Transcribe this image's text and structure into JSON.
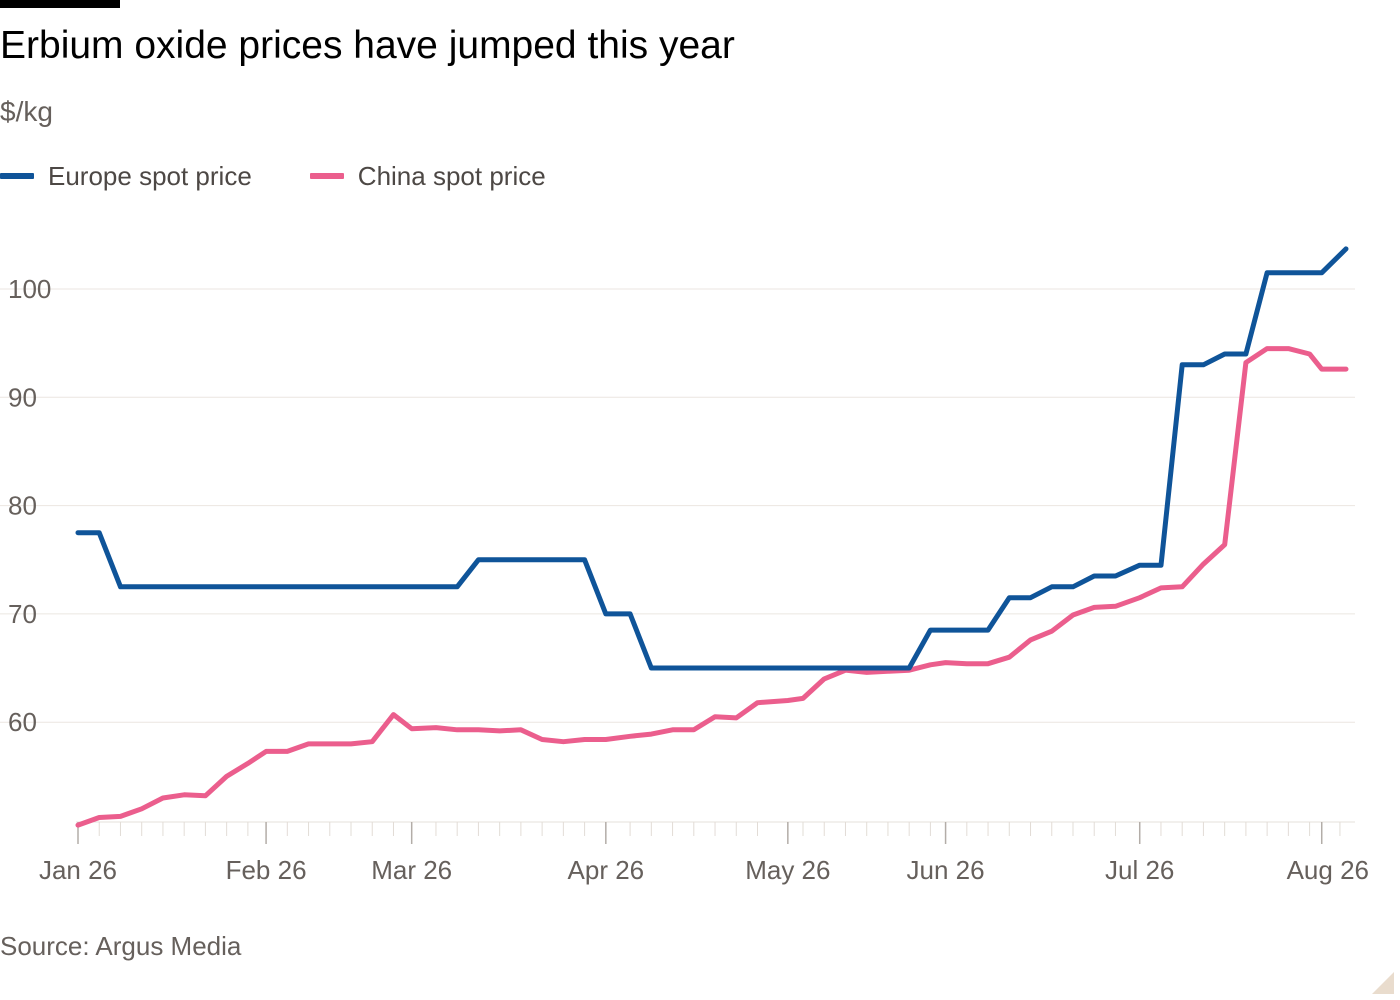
{
  "chart_data": {
    "type": "line",
    "title": "Erbium oxide prices have jumped this year",
    "subtitle": "$/kg",
    "source": "Source: Argus Media",
    "legend_position": "top-left",
    "grid": true,
    "ylim": [
      49,
      105
    ],
    "yticks": [
      60,
      70,
      80,
      90,
      100
    ],
    "xlim": [
      0,
      211
    ],
    "xticks": [
      {
        "label": "Jan 26",
        "x": 0
      },
      {
        "label": "Feb 26",
        "x": 31
      },
      {
        "label": "Mar 26",
        "x": 55
      },
      {
        "label": "Apr 26",
        "x": 87
      },
      {
        "label": "May 26",
        "x": 117
      },
      {
        "label": "Jun 26",
        "x": 143
      },
      {
        "label": "Jul 26",
        "x": 175
      },
      {
        "label": "Aug 26",
        "x": 205
      }
    ],
    "x_minor_ticks": [
      0,
      3.5,
      7,
      10.5,
      14,
      17.5,
      21,
      24.5,
      28,
      31,
      34.5,
      38,
      41.5,
      45,
      48.5,
      52,
      55,
      59,
      62.5,
      66,
      69.5,
      73,
      76.5,
      80,
      83.5,
      87,
      91,
      94.5,
      98,
      101.5,
      105,
      108.5,
      112,
      117,
      119.5,
      123,
      126.5,
      130,
      133.5,
      137,
      140.5,
      143,
      146.5,
      150,
      153.5,
      157,
      160.5,
      164,
      167.5,
      171,
      175,
      178.5,
      182,
      185.5,
      189,
      192.5,
      196,
      199.5,
      203,
      205,
      208
    ],
    "series": [
      {
        "name": "Europe spot price",
        "color": "#0f5499",
        "points": [
          [
            0,
            77.5
          ],
          [
            3.5,
            77.5
          ],
          [
            7,
            72.5
          ],
          [
            10.5,
            72.5
          ],
          [
            14,
            72.5
          ],
          [
            17.5,
            72.5
          ],
          [
            21,
            72.5
          ],
          [
            24.5,
            72.5
          ],
          [
            28,
            72.5
          ],
          [
            31,
            72.5
          ],
          [
            34.5,
            72.5
          ],
          [
            38,
            72.5
          ],
          [
            41.5,
            72.5
          ],
          [
            45,
            72.5
          ],
          [
            48.5,
            72.5
          ],
          [
            52,
            72.5
          ],
          [
            55,
            72.5
          ],
          [
            59,
            72.5
          ],
          [
            62.5,
            72.5
          ],
          [
            66,
            75
          ],
          [
            69.5,
            75
          ],
          [
            73,
            75
          ],
          [
            76.5,
            75
          ],
          [
            80,
            75
          ],
          [
            83.5,
            75
          ],
          [
            87,
            70
          ],
          [
            91,
            70
          ],
          [
            94.5,
            65
          ],
          [
            98,
            65
          ],
          [
            101.5,
            65
          ],
          [
            105,
            65
          ],
          [
            108.5,
            65
          ],
          [
            112,
            65
          ],
          [
            117,
            65
          ],
          [
            119.5,
            65
          ],
          [
            123,
            65
          ],
          [
            126.5,
            65
          ],
          [
            130,
            65
          ],
          [
            133.5,
            65
          ],
          [
            137,
            65
          ],
          [
            140.5,
            68.5
          ],
          [
            143,
            68.5
          ],
          [
            146.5,
            68.5
          ],
          [
            150,
            68.5
          ],
          [
            153.5,
            71.5
          ],
          [
            157,
            71.5
          ],
          [
            160.5,
            72.5
          ],
          [
            164,
            72.5
          ],
          [
            167.5,
            73.5
          ],
          [
            171,
            73.5
          ],
          [
            175,
            74.5
          ],
          [
            178.5,
            74.5
          ],
          [
            182,
            93
          ],
          [
            185.5,
            93
          ],
          [
            189,
            94
          ],
          [
            192.5,
            94
          ],
          [
            196,
            101.5
          ],
          [
            199.5,
            101.5
          ],
          [
            203,
            101.5
          ],
          [
            205,
            101.5
          ],
          [
            209,
            103.7
          ]
        ]
      },
      {
        "name": "China spot price",
        "color": "#eb5e8d",
        "points": [
          [
            0,
            50.5
          ],
          [
            3.5,
            51.2
          ],
          [
            7,
            51.3
          ],
          [
            10.5,
            52
          ],
          [
            14,
            53
          ],
          [
            17.5,
            53.3
          ],
          [
            21,
            53.2
          ],
          [
            24.5,
            55
          ],
          [
            28,
            56.2
          ],
          [
            31,
            57.3
          ],
          [
            34.5,
            57.3
          ],
          [
            38,
            58
          ],
          [
            41.5,
            58
          ],
          [
            45,
            58
          ],
          [
            48.5,
            58.2
          ],
          [
            52,
            60.7
          ],
          [
            55,
            59.4
          ],
          [
            59,
            59.5
          ],
          [
            62.5,
            59.3
          ],
          [
            66,
            59.3
          ],
          [
            69.5,
            59.2
          ],
          [
            73,
            59.3
          ],
          [
            76.5,
            58.4
          ],
          [
            80,
            58.2
          ],
          [
            83.5,
            58.4
          ],
          [
            87,
            58.4
          ],
          [
            91,
            58.7
          ],
          [
            94.5,
            58.9
          ],
          [
            98,
            59.3
          ],
          [
            101.5,
            59.3
          ],
          [
            105,
            60.5
          ],
          [
            108.5,
            60.4
          ],
          [
            112,
            61.8
          ],
          [
            117,
            62
          ],
          [
            119.5,
            62.2
          ],
          [
            123,
            64
          ],
          [
            126.5,
            64.8
          ],
          [
            130,
            64.6
          ],
          [
            133.5,
            64.7
          ],
          [
            137,
            64.8
          ],
          [
            140.5,
            65.3
          ],
          [
            143,
            65.5
          ],
          [
            146.5,
            65.4
          ],
          [
            150,
            65.4
          ],
          [
            153.5,
            66
          ],
          [
            157,
            67.6
          ],
          [
            160.5,
            68.4
          ],
          [
            164,
            69.9
          ],
          [
            167.5,
            70.6
          ],
          [
            171,
            70.7
          ],
          [
            175,
            71.5
          ],
          [
            178.5,
            72.4
          ],
          [
            182,
            72.5
          ],
          [
            185.5,
            74.6
          ],
          [
            189,
            76.4
          ],
          [
            192.5,
            93.2
          ],
          [
            196,
            94.5
          ],
          [
            199.5,
            94.5
          ],
          [
            203,
            94
          ],
          [
            205,
            92.6
          ],
          [
            209,
            92.6
          ]
        ]
      }
    ]
  }
}
